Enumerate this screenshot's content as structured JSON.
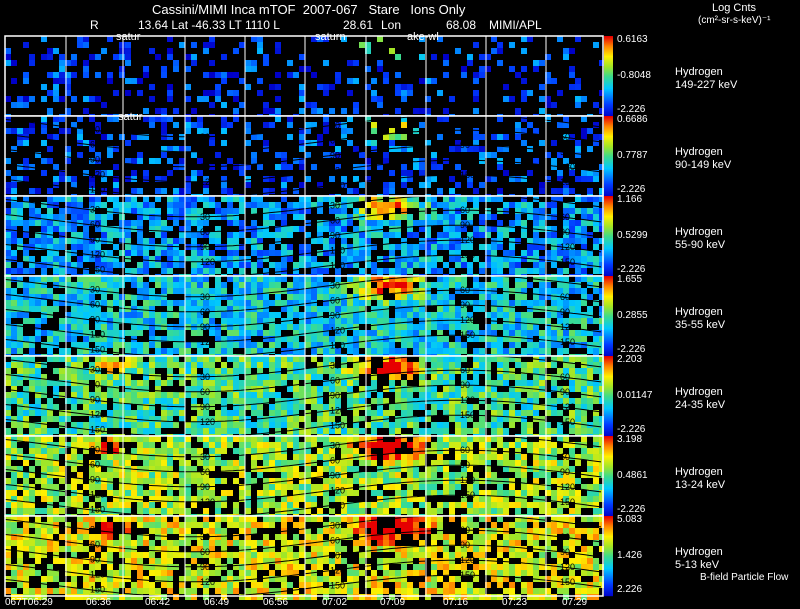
{
  "header": {
    "title": "Cassini/MIMI Inca mTOF  2007-067   Stare   Ions Only",
    "line2_r": "R",
    "line2_coords": "13.64 Lat -46.33 LT 1110 L",
    "line2_l": "28.61",
    "line2_lon_label": "Lon",
    "line2_lon": "68.08",
    "line2_source": "MIMI/APL",
    "colorbar_title_1": "Log Cnts",
    "colorbar_title_2": "(cm²-sr-s-keV)⁻¹"
  },
  "footer": {
    "bfield_label": "B-field Particle Flow"
  },
  "annotations": {
    "satur_1": "satur",
    "satur_2": "satur",
    "saturn": "saturn",
    "ake_wl": "ake-wl"
  },
  "colors": {
    "background": "#000000",
    "grid": "#ffffff",
    "contour": "#000000"
  },
  "chart_data": {
    "type": "heatmap",
    "title": "Cassini/MIMI Inca mTOF  2007-067   Stare   Ions Only",
    "x_tick_labels": [
      "067T06:29",
      "06:36",
      "06:42",
      "06:49",
      "06:56",
      "07:02",
      "07:09",
      "07:16",
      "07:23",
      "07:29"
    ],
    "contour_levels": [
      30,
      60,
      90,
      120,
      150
    ],
    "colormap": "rainbow (blue-cyan-green-yellow-red), black = no data",
    "panels": [
      {
        "species": "Hydrogen",
        "energy": "149-227 keV",
        "cmax": "0.6163",
        "cmid": "-0.8048",
        "cmin": "-2.226",
        "fill": 0.25,
        "base": 0.15,
        "contour_labels": []
      },
      {
        "species": "Hydrogen",
        "energy": "90-149 keV",
        "cmax": "0.6686",
        "cmid": "0.7787",
        "cmin": "-2.226",
        "fill": 0.32,
        "base": 0.17,
        "contour_labels": [
          "150"
        ]
      },
      {
        "species": "Hydrogen",
        "energy": "55-90 keV",
        "cmax": "1.166",
        "cmid": "0.5299",
        "cmin": "-2.226",
        "fill": 0.72,
        "base": 0.3,
        "contour_labels": [
          "30",
          "60",
          "90",
          "120",
          "150"
        ]
      },
      {
        "species": "Hydrogen",
        "energy": "35-55 keV",
        "cmax": "1.655",
        "cmid": "0.2855",
        "cmin": "-2.226",
        "fill": 0.82,
        "base": 0.38,
        "contour_labels": [
          "30",
          "60",
          "90",
          "120",
          "150"
        ]
      },
      {
        "species": "Hydrogen",
        "energy": "24-35 keV",
        "cmax": "2.203",
        "cmid": "0.01147",
        "cmin": "-2.226",
        "fill": 0.8,
        "base": 0.5,
        "contour_labels": [
          "30",
          "60",
          "90",
          "120",
          "150"
        ]
      },
      {
        "species": "Hydrogen",
        "energy": "13-24 keV",
        "cmax": "3.198",
        "cmid": "0.4861",
        "cmin": "-2.226",
        "fill": 0.78,
        "base": 0.62,
        "contour_labels": [
          "30",
          "60",
          "90",
          "120",
          "150"
        ]
      },
      {
        "species": "Hydrogen",
        "energy": "5-13 keV",
        "cmax": "5.083",
        "cmid": "1.426",
        "cmin": "2.226",
        "fill": 0.72,
        "base": 0.7,
        "contour_labels": [
          "30",
          "60",
          "90",
          "120",
          "150"
        ]
      }
    ]
  }
}
